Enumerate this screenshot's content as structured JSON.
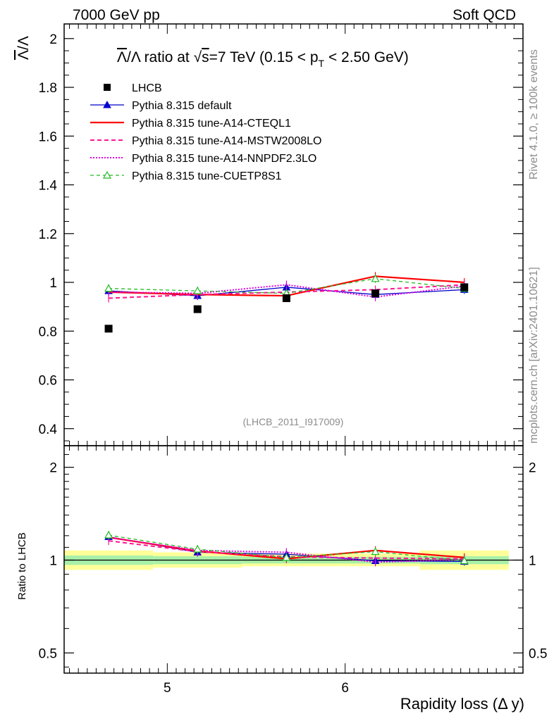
{
  "header": {
    "left": "7000 GeV pp",
    "right": "Soft QCD"
  },
  "side": {
    "top": "Rivet 4.1.0, ≥ 100k events",
    "bottom": "mcplots.cern.ch [arXiv:2401.10621]"
  },
  "colors": {
    "data": "#000000",
    "default": "#0000cc",
    "cteql1": "#ff0000",
    "mstw": "#ff1493",
    "nnpdf": "#e000e0",
    "cuetp8s1": "#22bb22",
    "band_inner": "#a8f0a8",
    "band_outer": "#ffff99"
  },
  "chart_data": [
    {
      "type": "scatter",
      "title": "Λ̅/Λ ratio at √s=7 TeV (0.15 < pT < 2.50 GeV)",
      "title_parts": {
        "lead": "Λ",
        "mid": "/Λ ratio at ",
        "root": "√",
        "s": "s",
        "rest": "=7 TeV (0.15 < p",
        "sub": "T",
        "tail": " < 2.50 GeV)"
      },
      "ylabel": "Λ̅/Λ",
      "ylabel_parts": {
        "a": "Λ",
        "b": "/Λ"
      },
      "xlabel": "Rapidity loss (Δ y)",
      "watermark": "(LHCB_2011_I917009)",
      "xlim": [
        4.42,
        7.0
      ],
      "ylim": [
        0.33,
        2.06
      ],
      "yticks": [
        0.4,
        0.6,
        0.8,
        1.0,
        1.2,
        1.4,
        1.6,
        1.8,
        2.0
      ],
      "ytick_labels": [
        "0.4",
        "0.6",
        "0.8",
        "1",
        "1.2",
        "1.4",
        "1.6",
        "1.8",
        "2"
      ],
      "x": [
        4.67,
        5.17,
        5.67,
        6.17,
        6.67
      ],
      "data": {
        "name": "LHCB",
        "values": [
          0.81,
          0.89,
          0.935,
          0.955,
          0.98
        ]
      },
      "series": [
        {
          "name": "Pythia 8.315 default",
          "key": "default",
          "values": [
            0.965,
            0.945,
            0.98,
            0.95,
            0.97
          ]
        },
        {
          "name": "Pythia 8.315 tune-A14-CTEQL1",
          "key": "cteql1",
          "values": [
            0.96,
            0.95,
            0.945,
            1.025,
            1.0
          ]
        },
        {
          "name": "Pythia 8.315 tune-A14-MSTW2008LO",
          "key": "mstw",
          "values": [
            0.935,
            0.95,
            0.96,
            0.97,
            0.99
          ]
        },
        {
          "name": "Pythia 8.315 tune-A14-NNPDF2.3LO",
          "key": "nnpdf",
          "values": [
            0.96,
            0.955,
            0.99,
            0.94,
            0.985
          ]
        },
        {
          "name": "Pythia 8.315 tune-CUETP8S1",
          "key": "cuetp8s1",
          "values": [
            0.975,
            0.965,
            0.955,
            1.015,
            0.975
          ]
        }
      ]
    },
    {
      "type": "line",
      "ylabel": "Ratio to LHCB",
      "xlabel": "Rapidity loss (Δ y)",
      "xlim": [
        4.42,
        7.0
      ],
      "ylim": [
        0.43,
        2.35
      ],
      "scale": "log",
      "yticks": [
        0.5,
        1,
        2
      ],
      "ytick_labels": [
        "0.5",
        "1",
        "2"
      ],
      "xticks": [
        5,
        6
      ],
      "xtick_labels": [
        "5",
        "6"
      ],
      "x": [
        4.67,
        5.17,
        5.67,
        6.17,
        6.67
      ],
      "band_inner": [
        [
          0.965,
          1.035
        ],
        [
          0.97,
          1.03
        ],
        [
          0.975,
          1.025
        ],
        [
          0.975,
          1.025
        ],
        [
          0.97,
          1.03
        ]
      ],
      "band_outer": [
        [
          0.93,
          1.075
        ],
        [
          0.945,
          1.06
        ],
        [
          0.955,
          1.05
        ],
        [
          0.955,
          1.05
        ],
        [
          0.93,
          1.075
        ]
      ],
      "series": [
        {
          "name": "Pythia 8.315 default",
          "key": "default",
          "values": [
            1.19,
            1.06,
            1.045,
            0.995,
            0.99
          ]
        },
        {
          "name": "Pythia 8.315 tune-A14-CTEQL1",
          "key": "cteql1",
          "values": [
            1.185,
            1.07,
            1.01,
            1.075,
            1.02
          ]
        },
        {
          "name": "Pythia 8.315 tune-A14-MSTW2008LO",
          "key": "mstw",
          "values": [
            1.155,
            1.065,
            1.025,
            1.015,
            1.01
          ]
        },
        {
          "name": "Pythia 8.315 tune-A14-NNPDF2.3LO",
          "key": "nnpdf",
          "values": [
            1.185,
            1.075,
            1.06,
            0.985,
            1.005
          ]
        },
        {
          "name": "Pythia 8.315 tune-CUETP8S1",
          "key": "cuetp8s1",
          "values": [
            1.205,
            1.085,
            1.02,
            1.065,
            0.995
          ]
        }
      ]
    }
  ]
}
